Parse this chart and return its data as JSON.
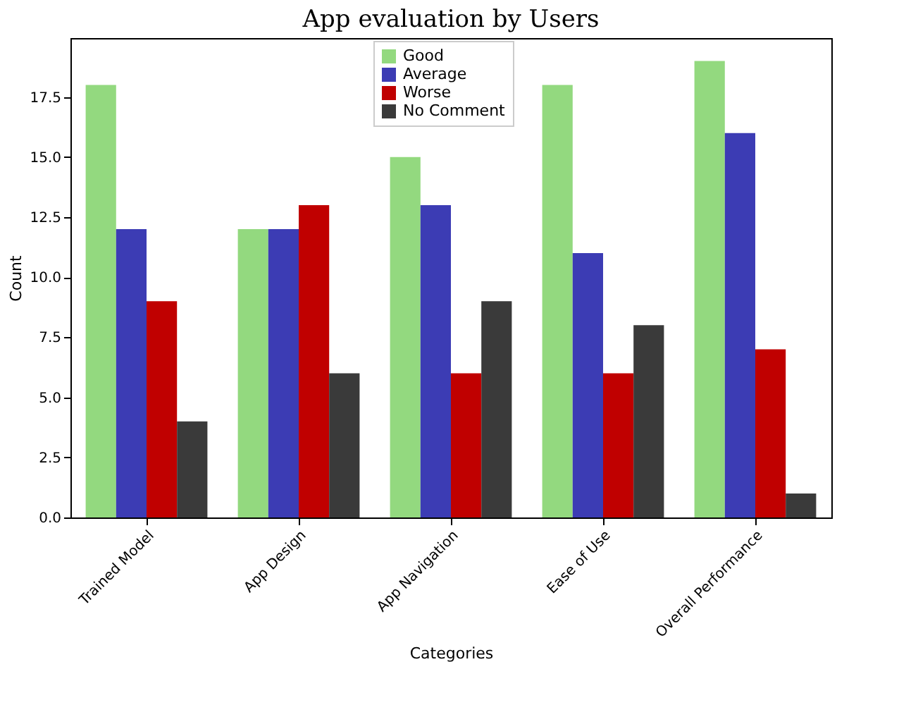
{
  "chart_data": {
    "type": "bar",
    "title": "App evaluation by Users",
    "xlabel": "Categories",
    "ylabel": "Count",
    "categories": [
      "Trained Model",
      "App Design",
      "App Navigation",
      "Ease of Use",
      "Overall Performance"
    ],
    "series": [
      {
        "name": "Good",
        "color": "#93d97f",
        "values": [
          18,
          12,
          15,
          18,
          19
        ]
      },
      {
        "name": "Average",
        "color": "#3c3cb4",
        "values": [
          12,
          12,
          13,
          11,
          16
        ]
      },
      {
        "name": "Worse",
        "color": "#c00000",
        "values": [
          9,
          13,
          6,
          6,
          7
        ]
      },
      {
        "name": "No Comment",
        "color": "#3a3a3a",
        "values": [
          4,
          6,
          9,
          8,
          1
        ]
      }
    ],
    "ylim": [
      0,
      19.95
    ],
    "yticks": [
      {
        "value": 0,
        "label": "0.0"
      },
      2.5,
      {
        "value": 5,
        "label": "5.0"
      },
      7.5,
      {
        "value": 10,
        "label": "10.0"
      },
      12.5,
      {
        "value": 15,
        "label": "15.0"
      },
      17.5
    ],
    "legend": "top",
    "grid": false
  }
}
